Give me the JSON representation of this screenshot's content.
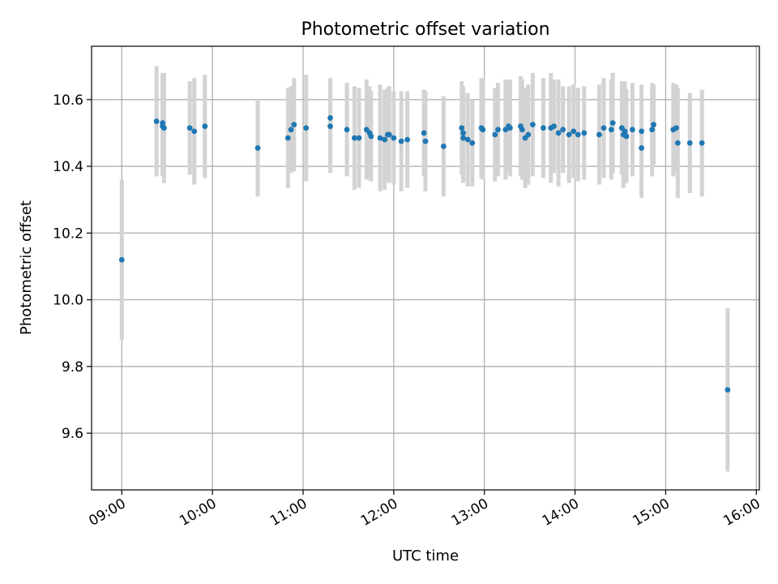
{
  "chart_data": {
    "type": "scatter",
    "title": "Photometric offset variation",
    "xlabel": "UTC time",
    "ylabel": "Photometric offset",
    "x_range": [
      "08:40",
      "16:02"
    ],
    "ylim": [
      9.43,
      10.76
    ],
    "grid": true,
    "x_ticks": [
      "09:00",
      "10:00",
      "11:00",
      "12:00",
      "13:00",
      "14:00",
      "15:00",
      "16:00"
    ],
    "y_ticks": [
      9.6,
      9.8,
      10.0,
      10.2,
      10.4,
      10.6
    ],
    "colors": {
      "points": "#1f77b4",
      "error_bars": "#d3d3d3",
      "grid": "#b0b0b0"
    },
    "series": [
      {
        "x": [
          "09:00",
          "09:23",
          "09:27",
          "09:27",
          "09:28",
          "09:45",
          "09:48",
          "09:55",
          "10:30",
          "10:50",
          "10:52",
          "10:54",
          "11:02",
          "11:18",
          "11:18",
          "11:29",
          "11:34",
          "11:37",
          "11:42",
          "11:44",
          "11:45",
          "11:51",
          "11:54",
          "11:56",
          "11:57",
          "12:00",
          "12:05",
          "12:09",
          "12:20",
          "12:21",
          "12:33",
          "12:45",
          "12:46",
          "12:46",
          "12:49",
          "12:52",
          "12:58",
          "12:59",
          "13:07",
          "13:09",
          "13:14",
          "13:16",
          "13:17",
          "13:24",
          "13:25",
          "13:27",
          "13:29",
          "13:32",
          "13:39",
          "13:44",
          "13:46",
          "13:49",
          "13:52",
          "13:56",
          "13:59",
          "14:02",
          "14:06",
          "14:16",
          "14:19",
          "14:24",
          "14:25",
          "14:31",
          "14:32",
          "14:33",
          "14:33",
          "14:34",
          "14:38",
          "14:44",
          "14:44",
          "14:51",
          "14:52",
          "15:05",
          "15:07",
          "15:08",
          "15:16",
          "15:24",
          "15:41"
        ],
        "y": [
          10.12,
          10.535,
          10.53,
          10.52,
          10.515,
          10.515,
          10.505,
          10.52,
          10.455,
          10.485,
          10.51,
          10.525,
          10.515,
          10.545,
          10.52,
          10.51,
          10.485,
          10.485,
          10.51,
          10.5,
          10.49,
          10.485,
          10.48,
          10.495,
          10.495,
          10.485,
          10.475,
          10.48,
          10.5,
          10.475,
          10.46,
          10.515,
          10.5,
          10.485,
          10.48,
          10.47,
          10.515,
          10.51,
          10.495,
          10.51,
          10.51,
          10.52,
          10.515,
          10.52,
          10.51,
          10.485,
          10.495,
          10.525,
          10.515,
          10.515,
          10.52,
          10.5,
          10.51,
          10.495,
          10.505,
          10.495,
          10.5,
          10.495,
          10.515,
          10.51,
          10.53,
          10.515,
          10.495,
          10.495,
          10.505,
          10.49,
          10.51,
          10.505,
          10.455,
          10.51,
          10.525,
          10.51,
          10.515,
          10.47,
          10.47,
          10.47,
          9.73
        ],
        "error": [
          0.24,
          0.165,
          0.15,
          0.15,
          0.165,
          0.14,
          0.16,
          0.155,
          0.145,
          0.15,
          0.13,
          0.14,
          0.16,
          0.12,
          0.14,
          0.14,
          0.155,
          0.15,
          0.15,
          0.14,
          0.135,
          0.16,
          0.15,
          0.14,
          0.145,
          0.14,
          0.15,
          0.145,
          0.13,
          0.15,
          0.15,
          0.14,
          0.14,
          0.135,
          0.14,
          0.13,
          0.15,
          0.15,
          0.14,
          0.14,
          0.15,
          0.135,
          0.145,
          0.15,
          0.15,
          0.15,
          0.15,
          0.155,
          0.15,
          0.165,
          0.14,
          0.16,
          0.13,
          0.145,
          0.14,
          0.14,
          0.14,
          0.15,
          0.15,
          0.15,
          0.15,
          0.14,
          0.16,
          0.14,
          0.15,
          0.14,
          0.14,
          0.14,
          0.15,
          0.14,
          0.12,
          0.14,
          0.13,
          0.165,
          0.15,
          0.16,
          0.245
        ]
      }
    ]
  }
}
